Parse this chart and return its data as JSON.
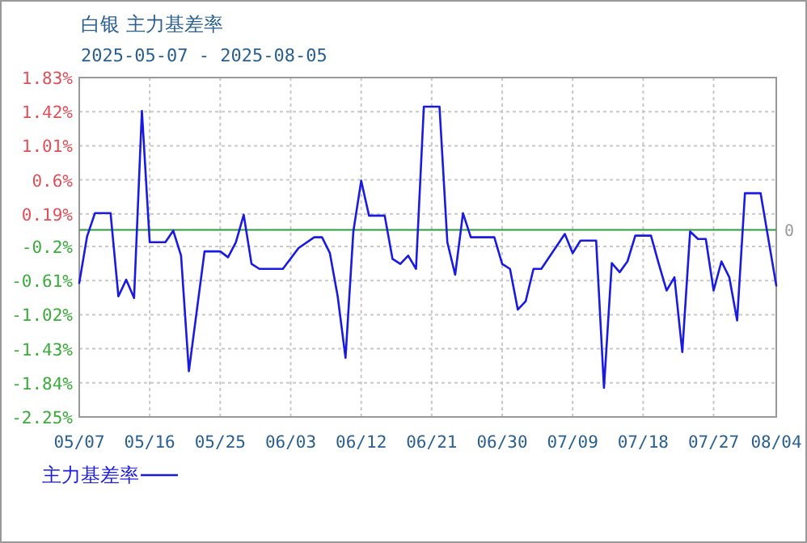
{
  "chart_data": {
    "type": "line",
    "title": "白银 主力基差率",
    "subtitle": "2025-05-07 - 2025-08-05",
    "x": [
      "2025-05-07",
      "2025-05-08",
      "2025-05-09",
      "2025-05-11",
      "2025-05-12",
      "2025-05-13",
      "2025-05-14",
      "2025-05-15",
      "2025-05-16",
      "2025-05-18",
      "2025-05-19",
      "2025-05-20",
      "2025-05-21",
      "2025-05-23",
      "2025-05-25",
      "2025-05-26",
      "2025-05-27",
      "2025-05-28",
      "2025-05-29",
      "2025-05-30",
      "2025-06-02",
      "2025-06-04",
      "2025-06-06",
      "2025-06-07",
      "2025-06-08",
      "2025-06-09",
      "2025-06-10",
      "2025-06-11",
      "2025-06-12",
      "2025-06-13",
      "2025-06-15",
      "2025-06-16",
      "2025-06-17",
      "2025-06-18",
      "2025-06-19",
      "2025-06-20",
      "2025-06-22",
      "2025-06-23",
      "2025-06-24",
      "2025-06-25",
      "2025-06-26",
      "2025-06-29",
      "2025-06-30",
      "2025-07-01",
      "2025-07-02",
      "2025-07-03",
      "2025-07-04",
      "2025-07-05",
      "2025-07-08",
      "2025-07-09",
      "2025-07-10",
      "2025-07-12",
      "2025-07-13",
      "2025-07-14",
      "2025-07-15",
      "2025-07-16",
      "2025-07-17",
      "2025-07-19",
      "2025-07-20",
      "2025-07-21",
      "2025-07-22",
      "2025-07-23",
      "2025-07-24",
      "2025-07-25",
      "2025-07-26",
      "2025-07-27",
      "2025-07-28",
      "2025-07-29",
      "2025-07-30",
      "2025-07-31",
      "2025-08-02",
      "2025-08-04"
    ],
    "series": [
      {
        "name": "主力基差率",
        "color": "#1a1ae0",
        "values": [
          -0.64,
          -0.08,
          0.2,
          0.2,
          -0.8,
          -0.6,
          -0.82,
          1.43,
          -0.15,
          -0.15,
          -0.01,
          -0.31,
          -1.7,
          -0.26,
          -0.26,
          -0.33,
          -0.15,
          0.18,
          -0.41,
          -0.47,
          -0.47,
          -0.22,
          -0.09,
          -0.09,
          -0.28,
          -0.8,
          -1.54,
          -0.02,
          0.59,
          0.17,
          0.17,
          -0.35,
          -0.41,
          -0.31,
          -0.47,
          1.48,
          1.48,
          -0.15,
          -0.54,
          0.2,
          -0.09,
          -0.09,
          -0.41,
          -0.47,
          -0.96,
          -0.86,
          -0.47,
          -0.47,
          -0.05,
          -0.28,
          -0.13,
          -0.13,
          -1.9,
          -0.4,
          -0.51,
          -0.38,
          -0.07,
          -0.07,
          -0.41,
          -0.73,
          -0.57,
          -1.47,
          -0.02,
          -0.11,
          -0.11,
          -0.73,
          -0.38,
          -0.57,
          -1.09,
          0.44,
          0.44,
          -0.67
        ]
      }
    ],
    "xlim": [
      "2025-05-07",
      "2025-08-04"
    ],
    "xticks": [
      {
        "value": "2025-05-07",
        "label": "05/07"
      },
      {
        "value": "2025-05-16",
        "label": "05/16"
      },
      {
        "value": "2025-05-25",
        "label": "05/25"
      },
      {
        "value": "2025-06-03",
        "label": "06/03"
      },
      {
        "value": "2025-06-12",
        "label": "06/12"
      },
      {
        "value": "2025-06-21",
        "label": "06/21"
      },
      {
        "value": "2025-06-30",
        "label": "06/30"
      },
      {
        "value": "2025-07-09",
        "label": "07/09"
      },
      {
        "value": "2025-07-18",
        "label": "07/18"
      },
      {
        "value": "2025-07-27",
        "label": "07/27"
      },
      {
        "value": "2025-08-04",
        "label": "08/04"
      }
    ],
    "ylim": [
      -2.25,
      1.83
    ],
    "yticks": [
      {
        "value": -2.25,
        "label": "-2.25%"
      },
      {
        "value": -1.84,
        "label": "-1.84%"
      },
      {
        "value": -1.43,
        "label": "-1.43%"
      },
      {
        "value": -1.02,
        "label": "-1.02%"
      },
      {
        "value": -0.61,
        "label": "-0.61%"
      },
      {
        "value": -0.2,
        "label": "-0.2%"
      },
      {
        "value": 0.19,
        "label": "0.19%"
      },
      {
        "value": 0.6,
        "label": "0.6%"
      },
      {
        "value": 1.01,
        "label": "1.01%"
      },
      {
        "value": 1.42,
        "label": "1.42%"
      },
      {
        "value": 1.83,
        "label": "1.83%"
      }
    ],
    "ref_lines": [
      {
        "axis": "y",
        "value": 0,
        "label": "0",
        "color": "#2e9a3e"
      }
    ],
    "grid": true,
    "legend": "bottom left",
    "marker": "none",
    "line_style": "solid"
  }
}
